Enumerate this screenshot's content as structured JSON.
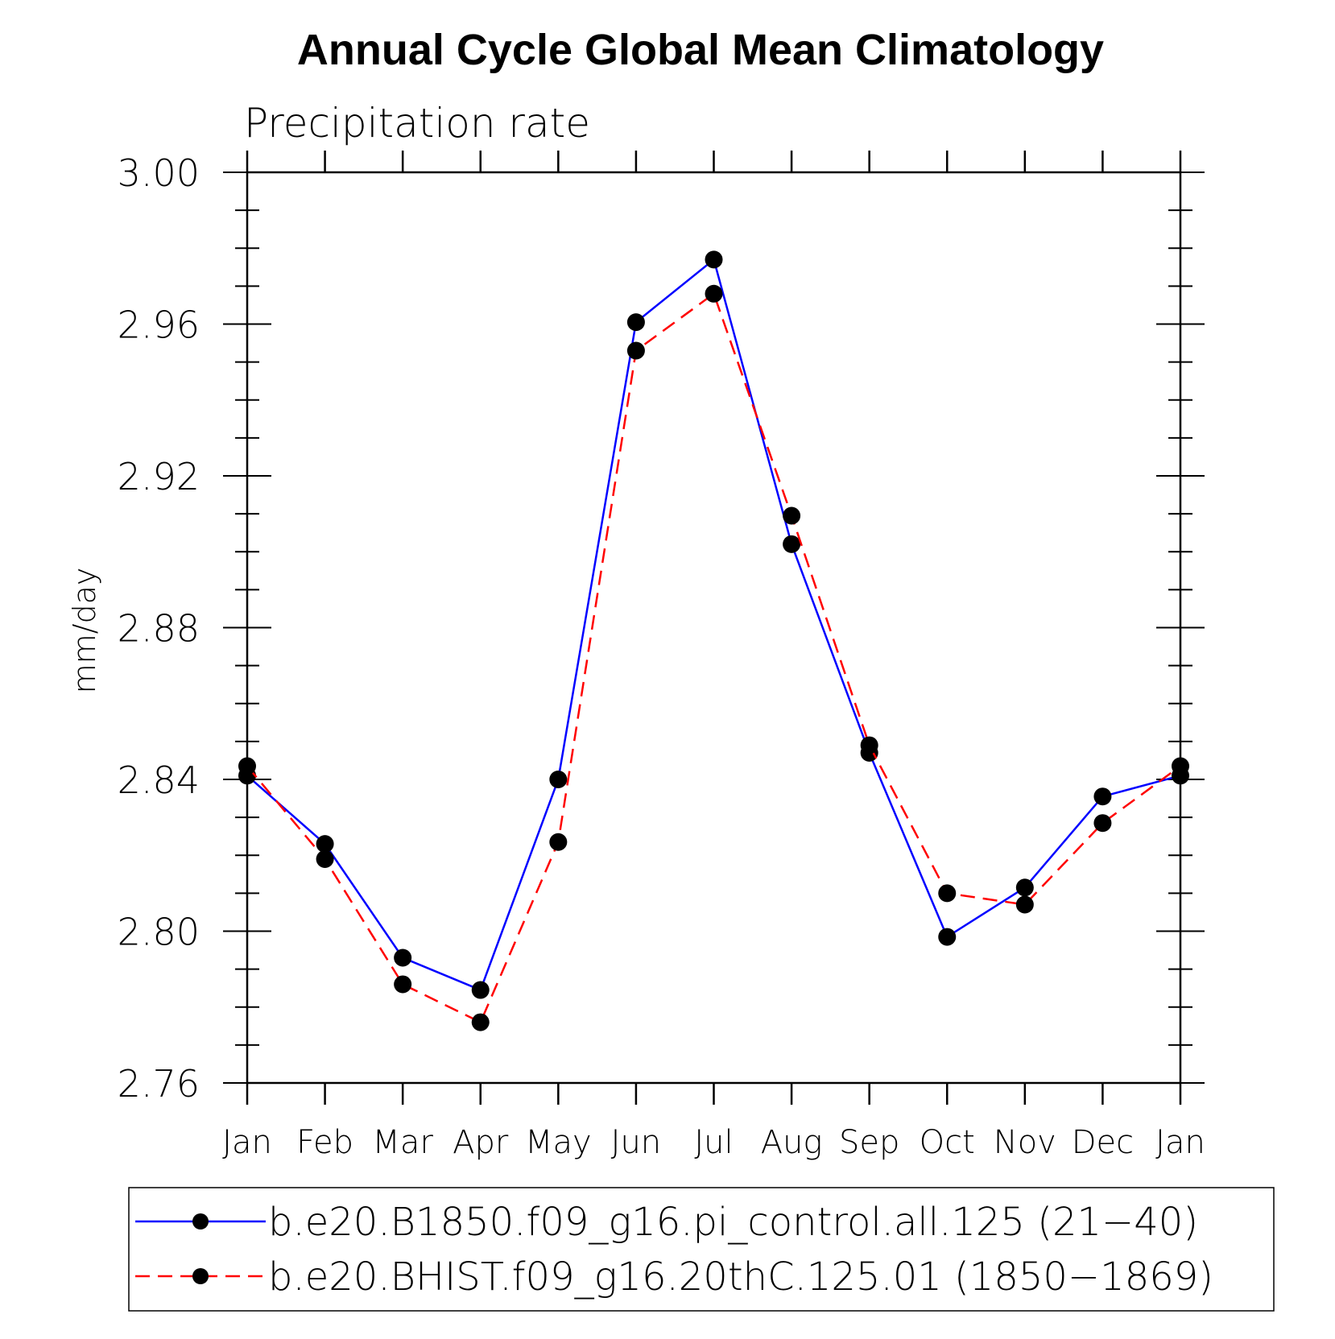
{
  "chart_data": {
    "type": "line",
    "title": "Annual Cycle Global Mean Climatology",
    "subtitle": "Precipitation rate",
    "xlabel": "",
    "ylabel": "mm/day",
    "ylim": [
      2.76,
      3.0
    ],
    "yticks": [
      "2.76",
      "2.80",
      "2.84",
      "2.88",
      "2.92",
      "2.96",
      "3.00"
    ],
    "categories": [
      "Jan",
      "Feb",
      "Mar",
      "Apr",
      "May",
      "Jun",
      "Jul",
      "Aug",
      "Sep",
      "Oct",
      "Nov",
      "Dec",
      "Jan"
    ],
    "series": [
      {
        "name": "b.e20.B1850.f09_g16.pi_control.all.125 (21−40)",
        "color": "#0000ff",
        "dash": "solid",
        "values": [
          2.841,
          2.823,
          2.793,
          2.7845,
          2.84,
          2.9605,
          2.977,
          2.902,
          2.847,
          2.7985,
          2.8115,
          2.8355,
          2.841
        ]
      },
      {
        "name": "b.e20.BHIST.f09_g16.20thC.125.01 (1850−1869)",
        "color": "#ff0000",
        "dash": "dashed",
        "values": [
          2.8435,
          2.819,
          2.786,
          2.776,
          2.8235,
          2.953,
          2.968,
          2.9095,
          2.849,
          2.81,
          2.807,
          2.8285,
          2.8435
        ]
      }
    ],
    "legend_position": "bottom"
  }
}
